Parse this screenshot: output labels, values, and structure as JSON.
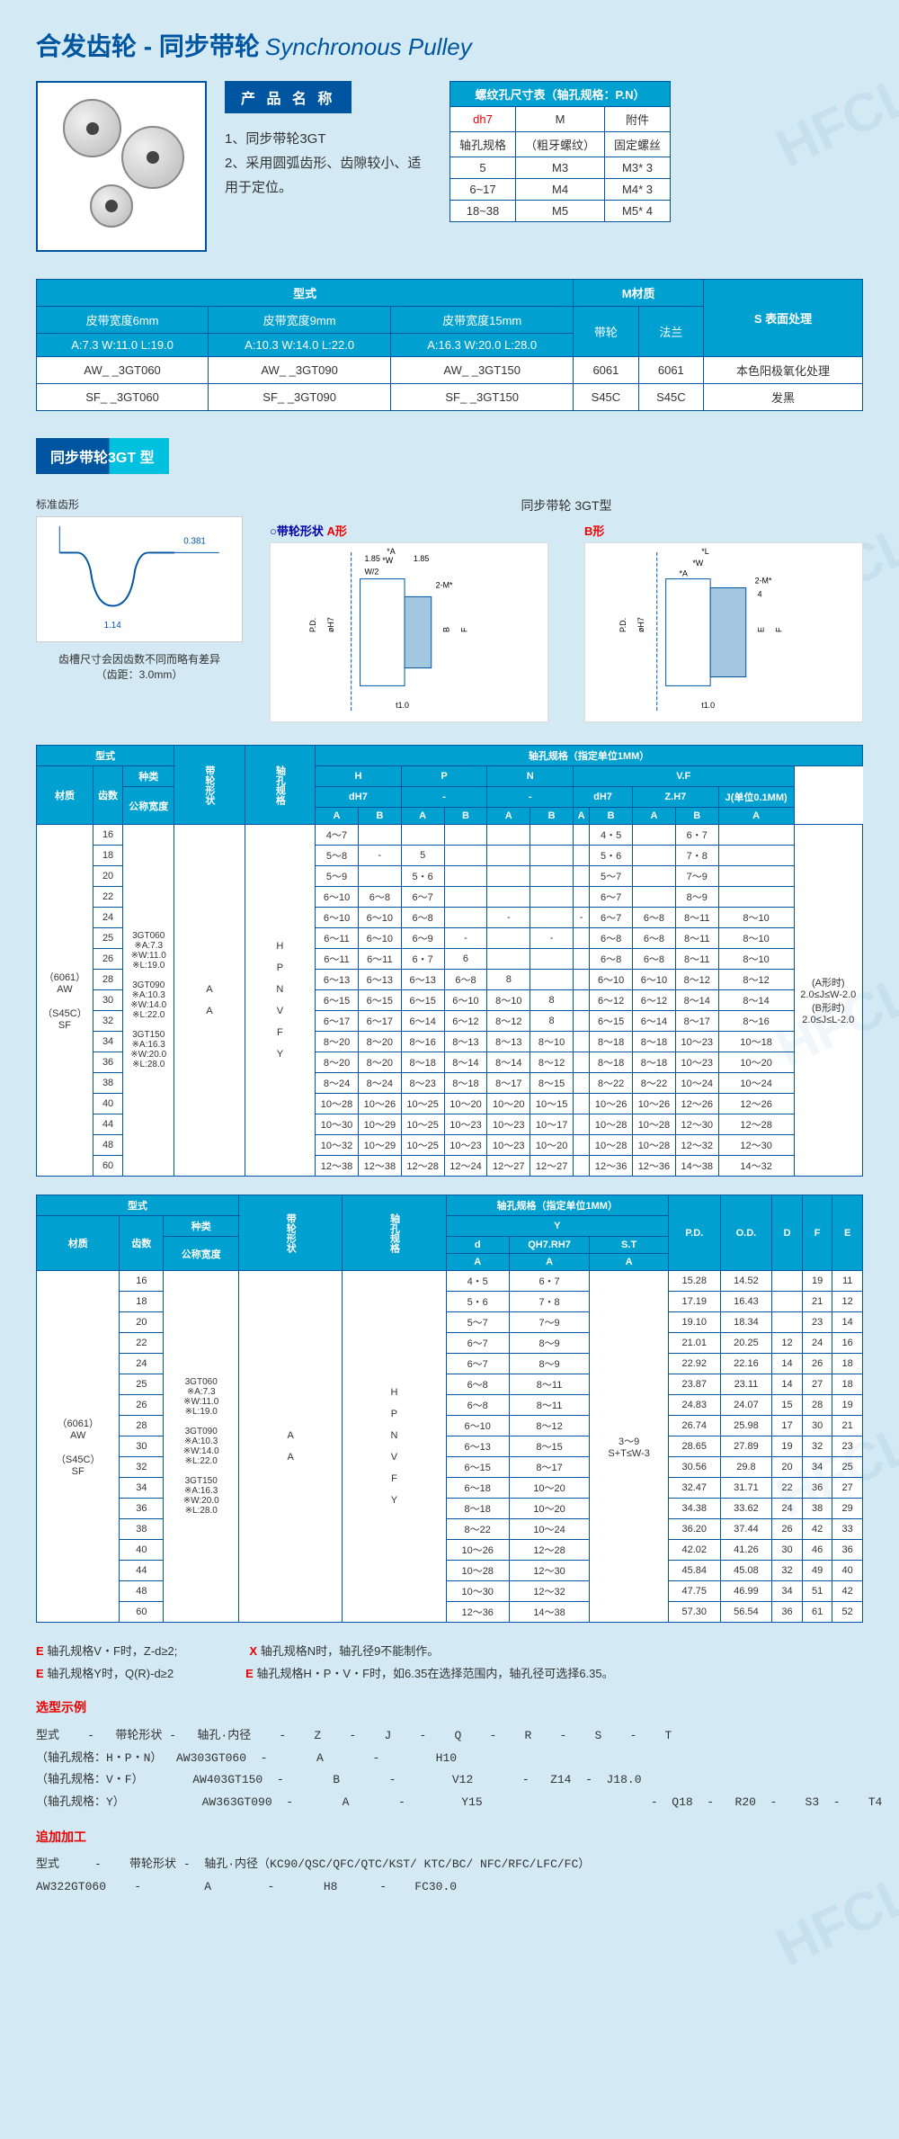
{
  "title_cn": "合发齿轮 - 同步带轮",
  "title_en": "Synchronous Pulley",
  "watermark": "HFCL",
  "product_name_header": "产 品 名 称",
  "product_desc_1": "1、同步带轮3GT",
  "product_desc_2": "2、采用圆弧齿形、齿隙较小、适用于定位。",
  "thread_table": {
    "header": "螺纹孔尺寸表（轴孔规格：P.N）",
    "col_dh7": "dh7",
    "col_m": "M",
    "col_attach": "附件",
    "sub_axle": "轴孔规格",
    "sub_thread": "（粗牙螺纹）",
    "sub_screw": "固定螺丝",
    "rows": [
      [
        "5",
        "M3",
        "M3* 3"
      ],
      [
        "6~17",
        "M4",
        "M4* 3"
      ],
      [
        "18~38",
        "M5",
        "M5* 4"
      ]
    ]
  },
  "type_table": {
    "h_type": "型式",
    "h_mat": "M材质",
    "h_surf": "S 表面处理",
    "belt6": "皮带宽度6mm",
    "belt9": "皮带宽度9mm",
    "belt15": "皮带宽度15mm",
    "h_pulley": "带轮",
    "h_flange": "法兰",
    "dim6": "A:7.3  W:11.0  L:19.0",
    "dim9": "A:10.3 W:14.0  L:22.0",
    "dim15": "A:16.3 W:20.0  L:28.0",
    "rows": [
      [
        "AW_ _3GT060",
        "AW_ _3GT090",
        "AW_ _3GT150",
        "6061",
        "6061",
        "本色阳极氧化处理"
      ],
      [
        "SF_ _3GT060",
        "SF_ _3GT090",
        "SF_ _3GT150",
        "S45C",
        "S45C",
        "发黑"
      ]
    ]
  },
  "section_3gt": "同步带轮3GT 型",
  "diag_left_title": "标准齿形",
  "diag_left_note": "齿槽尺寸会因齿数不同而略有差异",
  "diag_left_pitch": "（齿距：3.0mm）",
  "diag_main_title": "同步带轮 3GT型",
  "shape_a": "○带轮形状",
  "shape_a_lab": "A形",
  "shape_b_lab": "B形",
  "big_table1": {
    "header_type": "型式",
    "header_pulley_shape": "带轮形状",
    "header_axle_spec": "轴孔规格",
    "header_axle_title": "轴孔规格（指定单位1MM）",
    "col_mat": "材质",
    "col_teeth": "齿数",
    "col_kind": "种类",
    "col_nom": "公称宽度",
    "col_h": "H",
    "col_p": "P",
    "col_n": "N",
    "col_vf": "V.F",
    "sub_dh7": "dH7",
    "sub_zh7": "Z.H7",
    "sub_j": "J(单位0.1MM)",
    "sub_a": "A",
    "sub_b": "B",
    "mat_6061": "（6061）\nAW",
    "mat_s45c": "（S45C）\nSF",
    "kinds": [
      "3GT060\n※A:7.3\n※W:11.0\n※L:19.0",
      "3GT090\n※A:10.3\n※W:14.0\n※L:22.0",
      "3GT150\n※A:16.3\n※W:20.0\n※L:28.0"
    ],
    "shape_a": "A",
    "shape_sub": "H\n\nP\n\nN\n\nV\n\nF\n\nY",
    "j_note": "(A形时)\n2.0≤J≤W-2.0\n(B形时)\n2.0≤J≤L-2.0",
    "rows": [
      [
        "16",
        "4～7",
        "",
        "",
        "",
        "",
        "",
        "",
        "4・5",
        "",
        "6・7",
        "",
        ""
      ],
      [
        "18",
        "5～8",
        "-",
        "5",
        "",
        "",
        "",
        "",
        "5・6",
        "",
        "7・8",
        "",
        ""
      ],
      [
        "20",
        "5～9",
        "",
        "5・6",
        "",
        "",
        "",
        "",
        "5～7",
        "",
        "7～9",
        "",
        ""
      ],
      [
        "22",
        "6～10",
        "6～8",
        "6～7",
        "",
        "",
        "",
        "",
        "6～7",
        "",
        "8～9",
        "",
        ""
      ],
      [
        "24",
        "6～10",
        "6～10",
        "6～8",
        "",
        "-",
        "",
        "-",
        "6～7",
        "6～8",
        "8～11",
        "8～10",
        ""
      ],
      [
        "25",
        "6～11",
        "6～10",
        "6～9",
        "-",
        "",
        "-",
        "",
        "6～8",
        "6～8",
        "8～11",
        "8～10",
        ""
      ],
      [
        "26",
        "6～11",
        "6～11",
        "6・7",
        "6",
        "",
        "",
        "",
        "6～8",
        "6～8",
        "8～11",
        "8～10",
        ""
      ],
      [
        "28",
        "6～13",
        "6～13",
        "6～13",
        "6～8",
        "8",
        "",
        "",
        "6～10",
        "6～10",
        "8～12",
        "8～12",
        ""
      ],
      [
        "30",
        "6～15",
        "6～15",
        "6～15",
        "6～10",
        "8～10",
        "8",
        "",
        "6～12",
        "6～12",
        "8～14",
        "8～14",
        ""
      ],
      [
        "32",
        "6～17",
        "6～17",
        "6～14",
        "6～12",
        "8～12",
        "8",
        "",
        "6～15",
        "6～14",
        "8～17",
        "8～16",
        ""
      ],
      [
        "34",
        "8～20",
        "8～20",
        "8～16",
        "8～13",
        "8～13",
        "8～10",
        "",
        "8～18",
        "8～18",
        "10～23",
        "10～18",
        ""
      ],
      [
        "36",
        "8～20",
        "8～20",
        "8～18",
        "8～14",
        "8～14",
        "8～12",
        "",
        "8～18",
        "8～18",
        "10～23",
        "10～20",
        ""
      ],
      [
        "38",
        "8～24",
        "8～24",
        "8～23",
        "8～18",
        "8～17",
        "8～15",
        "",
        "8～22",
        "8～22",
        "10～24",
        "10～24",
        ""
      ],
      [
        "40",
        "10～28",
        "10～26",
        "10～25",
        "10～20",
        "10～20",
        "10～15",
        "",
        "10～26",
        "10～26",
        "12～26",
        "12～26",
        ""
      ],
      [
        "44",
        "10～30",
        "10～29",
        "10～25",
        "10～23",
        "10～23",
        "10～17",
        "",
        "10～28",
        "10～28",
        "12～30",
        "12～28",
        ""
      ],
      [
        "48",
        "10～32",
        "10～29",
        "10～25",
        "10～23",
        "10～23",
        "10～20",
        "",
        "10～28",
        "10～28",
        "12～32",
        "12～30",
        ""
      ],
      [
        "60",
        "12～38",
        "12～38",
        "12～28",
        "12～24",
        "12～27",
        "12～27",
        "",
        "12～36",
        "12～36",
        "14～38",
        "14～32",
        ""
      ]
    ]
  },
  "big_table2": {
    "header_axle_title": "轴孔规格（指定单位1MM）",
    "col_y": "Y",
    "col_d": "d",
    "col_qh7": "QH7.RH7",
    "col_st": "S.T",
    "col_pd": "P.D.",
    "col_od": "O.D.",
    "col_df": "D",
    "col_f": "F",
    "col_e": "E",
    "st_val": "3～9\nS+T≤W-3",
    "rows": [
      [
        "16",
        "4・5",
        "6・7",
        "",
        "15.28",
        "14.52",
        "",
        "19",
        "11"
      ],
      [
        "18",
        "5・6",
        "7・8",
        "",
        "17.19",
        "16.43",
        "",
        "21",
        "12"
      ],
      [
        "20",
        "5～7",
        "7～9",
        "",
        "19.10",
        "18.34",
        "",
        "23",
        "14"
      ],
      [
        "22",
        "6～7",
        "8～9",
        "",
        "21.01",
        "20.25",
        "12",
        "24",
        "16"
      ],
      [
        "24",
        "6～7",
        "8～9",
        "",
        "22.92",
        "22.16",
        "14",
        "26",
        "18"
      ],
      [
        "25",
        "6～8",
        "8～11",
        "",
        "23.87",
        "23.11",
        "14",
        "27",
        "18"
      ],
      [
        "26",
        "6～8",
        "8～11",
        "",
        "24.83",
        "24.07",
        "15",
        "28",
        "19"
      ],
      [
        "28",
        "6～10",
        "8～12",
        "",
        "26.74",
        "25.98",
        "17",
        "30",
        "21"
      ],
      [
        "30",
        "6～13",
        "8～15",
        "",
        "28.65",
        "27.89",
        "19",
        "32",
        "23"
      ],
      [
        "32",
        "6～15",
        "8～17",
        "",
        "30.56",
        "29.8",
        "20",
        "34",
        "25"
      ],
      [
        "34",
        "6～18",
        "10～20",
        "",
        "32.47",
        "31.71",
        "22",
        "36",
        "27"
      ],
      [
        "36",
        "8～18",
        "10～20",
        "",
        "34.38",
        "33.62",
        "24",
        "38",
        "29"
      ],
      [
        "38",
        "8～22",
        "10～24",
        "",
        "36.20",
        "37.44",
        "26",
        "42",
        "33"
      ],
      [
        "40",
        "10～26",
        "12～28",
        "",
        "42.02",
        "41.26",
        "30",
        "46",
        "36"
      ],
      [
        "44",
        "10～28",
        "12～30",
        "",
        "45.84",
        "45.08",
        "32",
        "49",
        "40"
      ],
      [
        "48",
        "10～30",
        "12～32",
        "",
        "47.75",
        "46.99",
        "34",
        "51",
        "42"
      ],
      [
        "60",
        "12～36",
        "14～38",
        "",
        "57.30",
        "56.54",
        "36",
        "61",
        "52"
      ]
    ]
  },
  "notes": {
    "e1": "轴孔规格V・F时，Z-d≥2;",
    "x1": "轴孔规格N时，轴孔径9不能制作。",
    "e2": "轴孔规格Y时，Q(R)-d≥2",
    "e3": "轴孔规格H・P・V・F时，如6.35在选择范围内，轴孔径可选择6.35。"
  },
  "sel_header": "选型示例",
  "sel_cols": "型式    -   带轮形状 -   轴孔·内径    -    Z    -    J    -    Q    -    R    -    S    -    T",
  "sel_rows": [
    "（轴孔规格：H・P・N）  AW303GT060  -       A       -        H10",
    "（轴孔规格：V・F）       AW403GT150  -       B       -        V12       -   Z14  -  J18.0",
    "（轴孔规格：Y）           AW363GT090  -       A       -        Y15                        -  Q18  -   R20  -    S3  -    T4"
  ],
  "add_header": "追加加工",
  "add_line1": "型式     -    带轮形状 -  轴孔·内径（KC90/QSC/QFC/QTC/KST/ KTC/BC/ NFC/RFC/LFC/FC）",
  "add_line2": "AW322GT060    -         A        -       H8      -    FC30.0"
}
